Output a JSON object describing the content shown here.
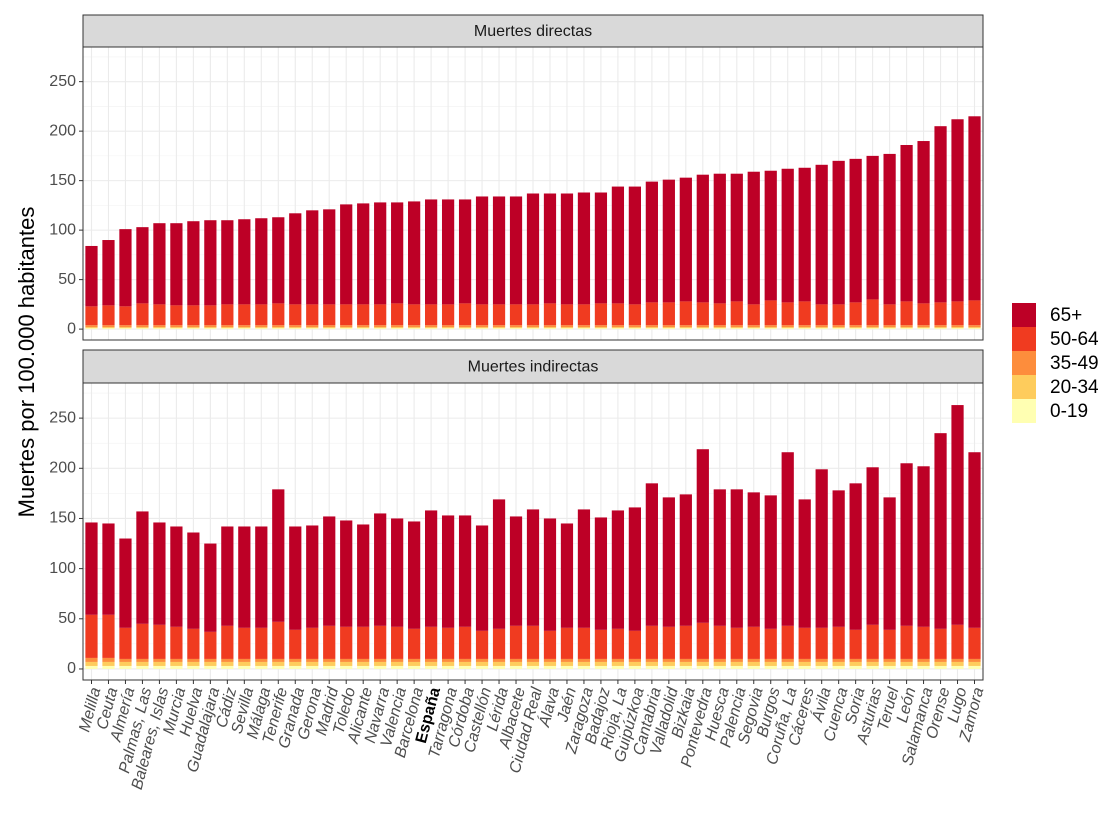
{
  "chart_data": {
    "type": "bar",
    "stacked": true,
    "ylabel": "Muertes por 100.000 habitantes",
    "categories": [
      "Melilla",
      "Ceuta",
      "Almería",
      "Palmas, Las",
      "Baleares, Islas",
      "Murcia",
      "Huelva",
      "Guadalajara",
      "Cádiz",
      "Sevilla",
      "Málaga",
      "Tenerife",
      "Granada",
      "Gerona",
      "Madrid",
      "Toledo",
      "Alicante",
      "Navarra",
      "Valencia",
      "Barcelona",
      "España",
      "Tarragona",
      "Córdoba",
      "Castellón",
      "Lérida",
      "Albacete",
      "Ciudad Real",
      "Álava",
      "Jaén",
      "Zaragoza",
      "Badajoz",
      "Rioja, La",
      "Guipúzkoa",
      "Cantabria",
      "Valladolid",
      "Bizkaia",
      "Pontevedra",
      "Huesca",
      "Palencia",
      "Segovia",
      "Burgos",
      "Coruña, La",
      "Cáceres",
      "Ávila",
      "Cuenca",
      "Soria",
      "Asturias",
      "Teruel",
      "León",
      "Salamanca",
      "Orense",
      "Lugo",
      "Zamora"
    ],
    "ylim": [
      -11,
      285
    ],
    "yticks": [
      0,
      50,
      100,
      150,
      200,
      250
    ],
    "grid": true,
    "legend_position": "right",
    "legend": [
      {
        "name": "0-19",
        "color": "#ffffb2"
      },
      {
        "name": "20-34",
        "color": "#fecc5c"
      },
      {
        "name": "35-49",
        "color": "#fd8d3c"
      },
      {
        "name": "50-64",
        "color": "#f03b20"
      },
      {
        "name": "65+",
        "color": "#bd0026"
      }
    ],
    "panels": [
      {
        "title": "Muertes directas",
        "series": [
          {
            "values": [
              1,
              1,
              1,
              1,
              1,
              1,
              1,
              1,
              1,
              1,
              1,
              1,
              1,
              1,
              1,
              1,
              1,
              1,
              1,
              1,
              1,
              1,
              1,
              1,
              1,
              1,
              1,
              1,
              1,
              1,
              1,
              1,
              1,
              1,
              1,
              1,
              1,
              1,
              1,
              1,
              1,
              1,
              1,
              1,
              1,
              1,
              1,
              1,
              1,
              1,
              1,
              1,
              1
            ]
          },
          {
            "values": [
              1,
              1,
              1,
              1,
              1,
              1,
              1,
              1,
              1,
              1,
              1,
              1,
              1,
              1,
              1,
              1,
              1,
              1,
              1,
              1,
              1,
              1,
              1,
              1,
              1,
              1,
              1,
              1,
              1,
              1,
              1,
              1,
              1,
              1,
              1,
              1,
              1,
              1,
              1,
              1,
              1,
              1,
              1,
              1,
              1,
              1,
              1,
              1,
              1,
              1,
              1,
              1,
              1
            ]
          },
          {
            "values": [
              2,
              2,
              2,
              2,
              2,
              2,
              2,
              2,
              2,
              2,
              2,
              2,
              2,
              2,
              2,
              2,
              2,
              2,
              2,
              2,
              2,
              2,
              2,
              2,
              2,
              2,
              2,
              2,
              2,
              2,
              2,
              2,
              2,
              2,
              2,
              2,
              2,
              2,
              2,
              2,
              2,
              2,
              2,
              2,
              2,
              2,
              2,
              2,
              2,
              2,
              2,
              2,
              2
            ]
          },
          {
            "values": [
              19,
              20,
              19,
              22,
              21,
              20,
              20,
              20,
              21,
              21,
              21,
              22,
              21,
              21,
              21,
              21,
              21,
              21,
              22,
              21,
              21,
              21,
              22,
              21,
              21,
              21,
              21,
              22,
              21,
              21,
              22,
              22,
              21,
              23,
              23,
              24,
              23,
              22,
              24,
              21,
              25,
              23,
              24,
              21,
              21,
              23,
              26,
              21,
              24,
              22,
              23,
              24,
              25
            ]
          },
          {
            "values": [
              61,
              66,
              78,
              77,
              82,
              83,
              85,
              86,
              85,
              86,
              87,
              87,
              92,
              95,
              96,
              101,
              102,
              103,
              102,
              104,
              106,
              106,
              105,
              109,
              109,
              109,
              112,
              111,
              112,
              113,
              112,
              118,
              119,
              122,
              124,
              125,
              129,
              131,
              129,
              134,
              131,
              135,
              135,
              141,
              145,
              145,
              145,
              152,
              158,
              164,
              178,
              184,
              186
            ]
          }
        ]
      },
      {
        "title": "Muertes indirectas",
        "series": [
          {
            "values": [
              3,
              3,
              3,
              3,
              3,
              3,
              3,
              3,
              3,
              3,
              3,
              3,
              3,
              3,
              3,
              3,
              3,
              3,
              3,
              3,
              3,
              3,
              3,
              3,
              3,
              3,
              3,
              3,
              3,
              3,
              3,
              3,
              3,
              3,
              3,
              3,
              3,
              3,
              3,
              3,
              3,
              3,
              3,
              3,
              3,
              3,
              3,
              3,
              3,
              3,
              3,
              3,
              3
            ]
          },
          {
            "values": [
              4,
              4,
              4,
              4,
              4,
              4,
              4,
              4,
              4,
              4,
              4,
              4,
              4,
              4,
              4,
              4,
              4,
              4,
              4,
              4,
              4,
              4,
              4,
              4,
              4,
              4,
              4,
              4,
              4,
              4,
              4,
              4,
              4,
              4,
              4,
              4,
              4,
              4,
              4,
              4,
              4,
              4,
              4,
              4,
              4,
              4,
              4,
              4,
              4,
              4,
              4,
              4,
              4
            ]
          },
          {
            "values": [
              4,
              4,
              3,
              3,
              3,
              3,
              3,
              3,
              3,
              3,
              3,
              3,
              3,
              3,
              3,
              3,
              3,
              3,
              3,
              3,
              3,
              3,
              3,
              3,
              3,
              3,
              3,
              3,
              3,
              3,
              3,
              3,
              3,
              3,
              3,
              3,
              3,
              3,
              3,
              3,
              3,
              3,
              3,
              3,
              3,
              3,
              3,
              3,
              3,
              3,
              3,
              3,
              3
            ]
          },
          {
            "values": [
              43,
              43,
              31,
              35,
              34,
              32,
              30,
              27,
              33,
              31,
              31,
              37,
              29,
              31,
              33,
              32,
              32,
              33,
              32,
              30,
              32,
              31,
              32,
              28,
              30,
              33,
              33,
              28,
              31,
              31,
              29,
              30,
              28,
              33,
              32,
              33,
              36,
              33,
              31,
              32,
              30,
              33,
              31,
              31,
              32,
              29,
              34,
              29,
              33,
              32,
              30,
              34,
              31
            ]
          },
          {
            "values": [
              92,
              91,
              89,
              112,
              102,
              100,
              96,
              88,
              99,
              101,
              101,
              132,
              103,
              102,
              109,
              106,
              102,
              112,
              108,
              107,
              116,
              112,
              111,
              105,
              129,
              109,
              116,
              112,
              104,
              118,
              112,
              118,
              123,
              142,
              129,
              131,
              173,
              136,
              138,
              134,
              133,
              173,
              128,
              158,
              136,
              146,
              157,
              132,
              162,
              160,
              195,
              219,
              175
            ]
          }
        ]
      }
    ]
  }
}
